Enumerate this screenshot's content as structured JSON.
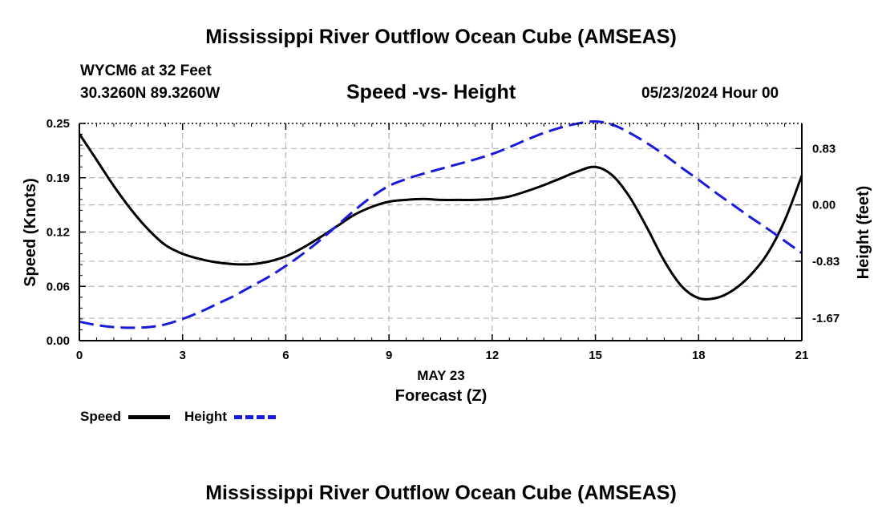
{
  "page": {
    "title_top": "Mississippi River Outflow Ocean Cube (AMSEAS)",
    "title_bottom": "Mississippi River Outflow Ocean Cube (AMSEAS)",
    "station": "WYCM6 at 32 Feet",
    "coords": "30.3260N  89.3260W",
    "datetime": "05/23/2024 Hour 00"
  },
  "chart_data": {
    "type": "line",
    "title": "Speed -vs- Height",
    "xlabel": "Forecast (Z)",
    "xlabel_date": "MAY 23",
    "ylabel_left": "Speed (Knots)",
    "ylabel_right": "Height (feet)",
    "xlim": [
      0,
      21
    ],
    "ylim_left": [
      0,
      0.25
    ],
    "ylim_right": [
      -2.0,
      1.2
    ],
    "x_ticks": [
      "0",
      "3",
      "6",
      "9",
      "12",
      "15",
      "18",
      "21"
    ],
    "y_ticks_left": [
      "0.00",
      "0.06",
      "0.12",
      "0.19",
      "0.25"
    ],
    "y_ticks_left_values": [
      0,
      0.0625,
      0.125,
      0.1875,
      0.25
    ],
    "y_ticks_right": [
      "-1.67",
      "-0.83",
      "0.00",
      "0.83"
    ],
    "y_ticks_right_values": [
      -1.67,
      -0.83,
      0.0,
      0.83
    ],
    "grid": true,
    "series": [
      {
        "name": "Speed",
        "axis": "left",
        "color": "#000000",
        "style": "solid",
        "x": [
          0,
          0.5,
          1,
          1.5,
          2,
          2.5,
          3,
          3.5,
          4,
          4.5,
          5,
          5.5,
          6,
          6.5,
          7,
          7.5,
          8,
          8.5,
          9,
          9.5,
          10,
          10.5,
          11,
          11.5,
          12,
          12.5,
          13,
          13.5,
          14,
          14.5,
          15,
          15.5,
          16,
          16.5,
          17,
          17.5,
          18,
          18.5,
          19,
          19.5,
          20,
          20.5,
          21
        ],
        "values": [
          0.238,
          0.208,
          0.178,
          0.151,
          0.128,
          0.11,
          0.1,
          0.094,
          0.09,
          0.088,
          0.088,
          0.091,
          0.097,
          0.107,
          0.119,
          0.132,
          0.145,
          0.154,
          0.16,
          0.162,
          0.163,
          0.162,
          0.162,
          0.162,
          0.163,
          0.166,
          0.172,
          0.179,
          0.187,
          0.195,
          0.2,
          0.19,
          0.165,
          0.13,
          0.092,
          0.063,
          0.049,
          0.049,
          0.058,
          0.075,
          0.1,
          0.138,
          0.19
        ]
      },
      {
        "name": "Height",
        "axis": "right",
        "color": "#1a1adc",
        "style": "dashed",
        "x": [
          0,
          0.5,
          1,
          1.5,
          2,
          2.5,
          3,
          3.5,
          4,
          4.5,
          5,
          5.5,
          6,
          6.5,
          7,
          7.5,
          8,
          8.5,
          9,
          9.5,
          10,
          10.5,
          11,
          11.5,
          12,
          12.5,
          13,
          13.5,
          14,
          14.5,
          15,
          15.5,
          16,
          16.5,
          17,
          17.5,
          18,
          18.5,
          19,
          19.5,
          20,
          20.5,
          21
        ],
        "values": [
          -1.72,
          -1.77,
          -1.8,
          -1.81,
          -1.8,
          -1.76,
          -1.68,
          -1.58,
          -1.46,
          -1.34,
          -1.2,
          -1.06,
          -0.9,
          -0.72,
          -0.52,
          -0.3,
          -0.08,
          0.12,
          0.28,
          0.38,
          0.46,
          0.53,
          0.6,
          0.67,
          0.75,
          0.85,
          0.96,
          1.06,
          1.14,
          1.2,
          1.23,
          1.18,
          1.06,
          0.91,
          0.74,
          0.55,
          0.37,
          0.18,
          0.0,
          -0.18,
          -0.35,
          -0.53,
          -0.71
        ]
      }
    ],
    "legend": [
      "Speed",
      "Height"
    ]
  }
}
